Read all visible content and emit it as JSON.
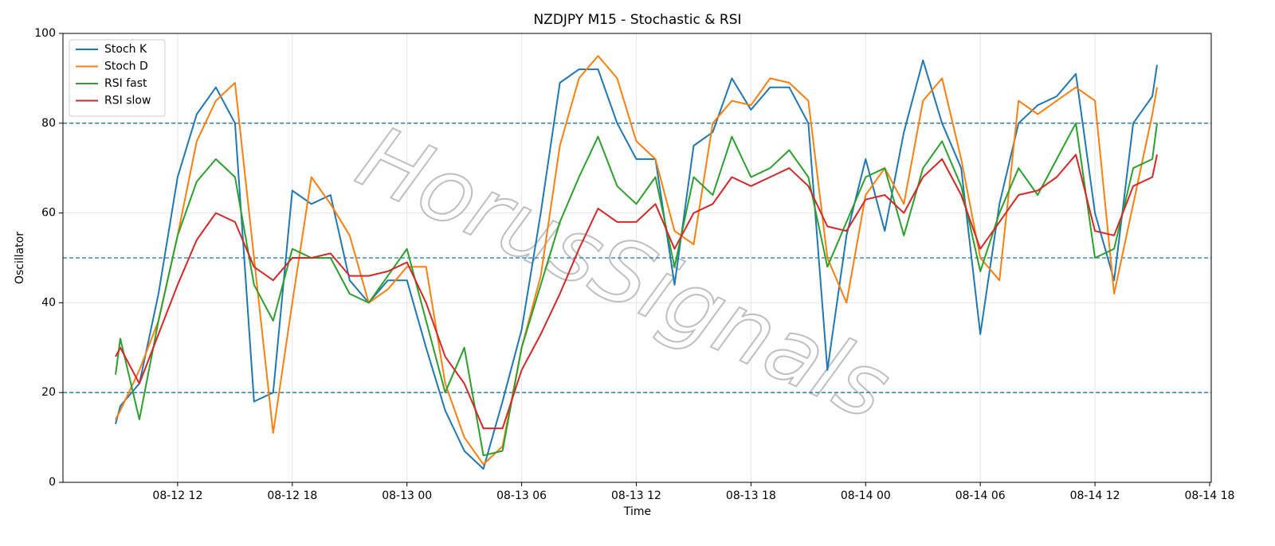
{
  "chart_data": {
    "type": "line",
    "title": "NZDJPY M15 - Stochastic & RSI",
    "x_label": "Time",
    "y_label": "Oscillator",
    "watermark": "HorusSignals",
    "x": [
      "08-12 08:45",
      "08-12 09:00",
      "08-12 10:00",
      "08-12 11:00",
      "08-12 12:00",
      "08-12 13:00",
      "08-12 14:00",
      "08-12 15:00",
      "08-12 16:00",
      "08-12 17:00",
      "08-12 18:00",
      "08-12 19:00",
      "08-12 20:00",
      "08-12 21:00",
      "08-12 22:00",
      "08-12 23:00",
      "08-13 00:00",
      "08-13 01:00",
      "08-13 02:00",
      "08-13 03:00",
      "08-13 04:00",
      "08-13 05:00",
      "08-13 06:00",
      "08-13 07:00",
      "08-13 08:00",
      "08-13 09:00",
      "08-13 10:00",
      "08-13 11:00",
      "08-13 12:00",
      "08-13 13:00",
      "08-13 14:00",
      "08-13 15:00",
      "08-13 16:00",
      "08-13 17:00",
      "08-13 18:00",
      "08-13 19:00",
      "08-13 20:00",
      "08-13 21:00",
      "08-13 22:00",
      "08-13 23:00",
      "08-14 00:00",
      "08-14 01:00",
      "08-14 02:00",
      "08-14 03:00",
      "08-14 04:00",
      "08-14 05:00",
      "08-14 06:00",
      "08-14 07:00",
      "08-14 08:00",
      "08-14 09:00",
      "08-14 10:00",
      "08-14 11:00",
      "08-14 12:00",
      "08-14 13:00",
      "08-14 14:00",
      "08-14 15:00",
      "08-14 15:15"
    ],
    "series": [
      {
        "name": "Stoch K",
        "color": "#1f77b4",
        "values": [
          13,
          17,
          22,
          42,
          68,
          82,
          88,
          80,
          18,
          20,
          65,
          62,
          64,
          45,
          40,
          45,
          45,
          30,
          16,
          7,
          3,
          18,
          34,
          60,
          89,
          92,
          92,
          80,
          72,
          72,
          44,
          75,
          78,
          90,
          83,
          88,
          88,
          80,
          25,
          55,
          72,
          56,
          78,
          94,
          80,
          70,
          33,
          62,
          80,
          84,
          86,
          91,
          60,
          45,
          80,
          86,
          93
        ]
      },
      {
        "name": "Stoch D",
        "color": "#ff7f0e",
        "values": [
          14,
          16,
          25,
          36,
          55,
          76,
          85,
          89,
          50,
          11,
          40,
          68,
          62,
          55,
          40,
          43,
          48,
          48,
          22,
          10,
          4,
          8,
          30,
          46,
          75,
          90,
          95,
          90,
          76,
          72,
          56,
          53,
          80,
          85,
          84,
          90,
          89,
          85,
          50,
          40,
          64,
          70,
          62,
          85,
          90,
          72,
          50,
          45,
          85,
          82,
          85,
          88,
          85,
          42,
          62,
          82,
          88
        ]
      },
      {
        "name": "RSI fast",
        "color": "#2ca02c",
        "values": [
          24,
          32,
          14,
          36,
          55,
          67,
          72,
          68,
          44,
          36,
          52,
          50,
          50,
          42,
          40,
          46,
          52,
          36,
          20,
          30,
          6,
          7,
          30,
          44,
          58,
          68,
          77,
          66,
          62,
          68,
          48,
          68,
          64,
          77,
          68,
          70,
          74,
          68,
          48,
          58,
          68,
          70,
          55,
          70,
          76,
          66,
          47,
          60,
          70,
          64,
          72,
          80,
          50,
          52,
          70,
          72,
          80
        ]
      },
      {
        "name": "RSI slow",
        "color": "#d62728",
        "values": [
          28,
          30,
          22,
          33,
          44,
          54,
          60,
          58,
          48,
          45,
          50,
          50,
          51,
          46,
          46,
          47,
          49,
          40,
          28,
          22,
          12,
          12,
          25,
          33,
          42,
          52,
          61,
          58,
          58,
          62,
          52,
          60,
          62,
          68,
          66,
          68,
          70,
          66,
          57,
          56,
          63,
          64,
          60,
          68,
          72,
          64,
          52,
          58,
          64,
          65,
          68,
          73,
          56,
          55,
          66,
          68,
          73
        ]
      }
    ],
    "xlim": [
      "08-12 06:00",
      "08-14 18:05"
    ],
    "xticks": [
      {
        "value": "08-12 12:00",
        "label": "08-12 12"
      },
      {
        "value": "08-12 18:00",
        "label": "08-12 18"
      },
      {
        "value": "08-13 00:00",
        "label": "08-13 00"
      },
      {
        "value": "08-13 06:00",
        "label": "08-13 06"
      },
      {
        "value": "08-13 12:00",
        "label": "08-13 12"
      },
      {
        "value": "08-13 18:00",
        "label": "08-13 18"
      },
      {
        "value": "08-14 00:00",
        "label": "08-14 00"
      },
      {
        "value": "08-14 06:00",
        "label": "08-14 06"
      },
      {
        "value": "08-14 12:00",
        "label": "08-14 12"
      },
      {
        "value": "08-14 18:00",
        "label": "08-14 18"
      }
    ],
    "ylim": [
      0,
      100
    ],
    "yticks": [
      0,
      20,
      40,
      60,
      80,
      100
    ],
    "hlines": [
      20,
      50,
      80
    ],
    "hline_color": "#1f77b4",
    "grid": true,
    "legend": "upper left"
  }
}
